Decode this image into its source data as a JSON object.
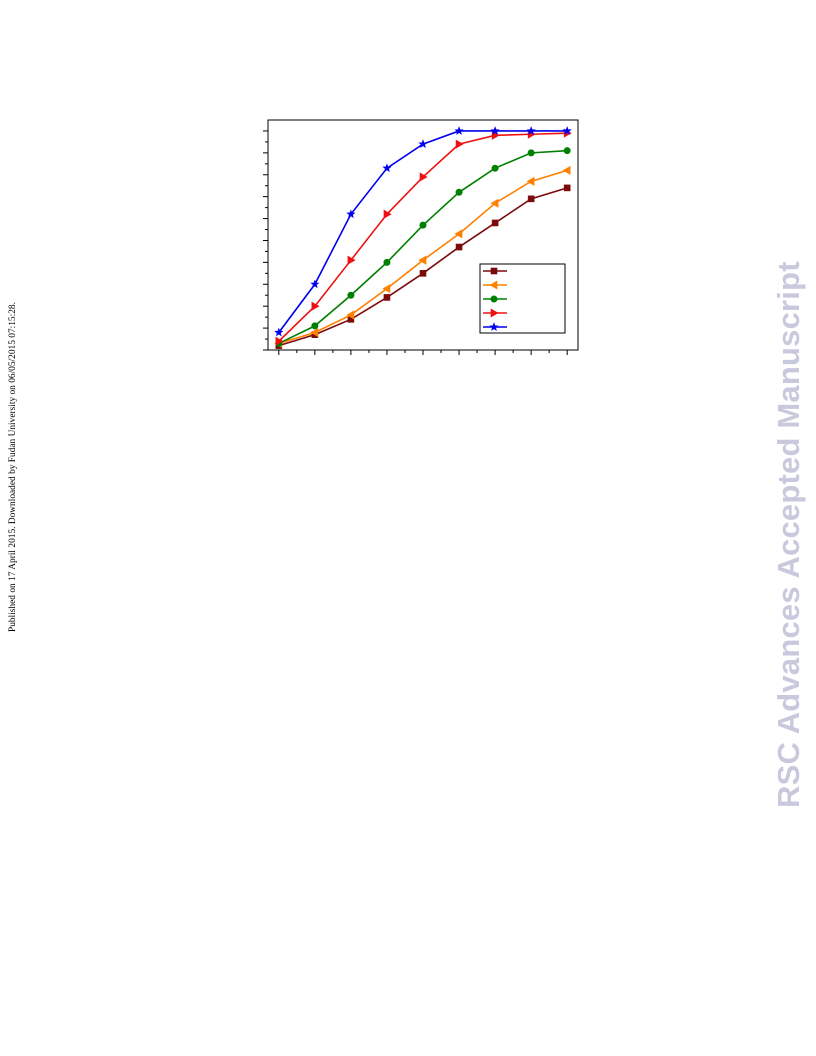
{
  "side_note": "Published on 17 April 2015. Downloaded by Fudan University on 06/05/2015 07:15:28.",
  "watermark": "RSC Advances Accepted Manuscript",
  "chart_data": {
    "type": "line",
    "title": "",
    "xlabel": "",
    "ylabel": "",
    "xlim": [
      0.7,
      9.3
    ],
    "ylim": [
      0,
      105
    ],
    "grid": false,
    "legend_position": "bottom-right",
    "x": [
      1,
      2,
      3,
      4,
      5,
      6,
      7,
      8,
      9
    ],
    "series": [
      {
        "marker": "square",
        "color": "#7b0a0a",
        "values": [
          2,
          7,
          14,
          24,
          35,
          47,
          58,
          69,
          74
        ]
      },
      {
        "marker": "triangle-left",
        "color": "#ff8000",
        "values": [
          3,
          8,
          16,
          28,
          41,
          53,
          67,
          77,
          82
        ]
      },
      {
        "marker": "circle",
        "color": "#008000",
        "values": [
          3,
          11,
          25,
          40,
          57,
          72,
          83,
          90,
          91
        ]
      },
      {
        "marker": "triangle-right",
        "color": "#ee1111",
        "values": [
          4,
          20,
          41,
          62,
          79,
          94,
          98,
          98.5,
          99
        ]
      },
      {
        "marker": "star",
        "color": "#0000ee",
        "values": [
          8,
          30,
          62,
          83,
          94,
          100,
          100,
          100,
          100
        ]
      }
    ]
  }
}
